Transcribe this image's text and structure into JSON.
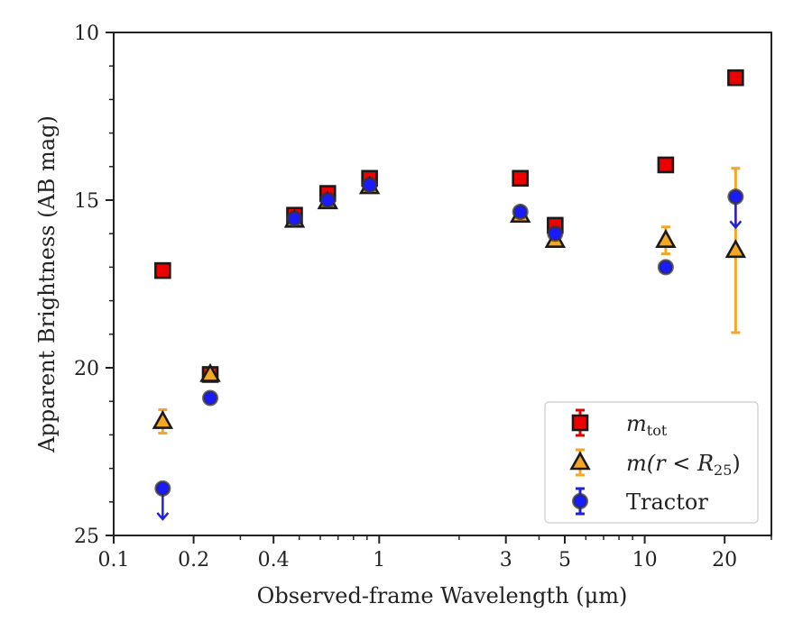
{
  "chart_data": {
    "type": "scatter",
    "xlabel": "Observed-frame Wavelength (μm)",
    "ylabel": "Apparent Brightness (AB mag)",
    "x_scale": "log",
    "y_inverted": true,
    "xlim": [
      0.1,
      30
    ],
    "ylim": [
      25,
      10
    ],
    "x_ticks": [
      {
        "value": 0.1,
        "label": "0.1"
      },
      {
        "value": 0.2,
        "label": "0.2"
      },
      {
        "value": 0.4,
        "label": "0.4"
      },
      {
        "value": 1,
        "label": "1"
      },
      {
        "value": 3,
        "label": "3"
      },
      {
        "value": 5,
        "label": "5"
      },
      {
        "value": 10,
        "label": "10"
      },
      {
        "value": 20,
        "label": "20"
      }
    ],
    "x_minor_ticks": [
      0.3,
      0.5,
      0.6,
      0.7,
      0.8,
      0.9,
      2,
      4,
      6,
      7,
      8,
      9,
      30
    ],
    "y_ticks": [
      {
        "value": 10,
        "label": "10"
      },
      {
        "value": 15,
        "label": "15"
      },
      {
        "value": 20,
        "label": "20"
      },
      {
        "value": 25,
        "label": "25"
      }
    ],
    "y_minor_ticks": [
      11,
      12,
      13,
      14,
      16,
      17,
      18,
      19,
      21,
      22,
      23,
      24
    ],
    "grid": false,
    "legend_position": "lower-right",
    "series": [
      {
        "name": "m_tot",
        "legend_main": "m",
        "legend_sub": "tot",
        "marker": "square",
        "color": "#ee0000",
        "errcolor": "#dd0000",
        "points": [
          {
            "x": 0.153,
            "y": 17.1,
            "err": 0.05
          },
          {
            "x": 0.231,
            "y": 20.2,
            "err": 0.05
          },
          {
            "x": 0.48,
            "y": 15.45,
            "err": 0.05
          },
          {
            "x": 0.64,
            "y": 14.8,
            "err": 0.05
          },
          {
            "x": 0.92,
            "y": 14.35,
            "err": 0.05
          },
          {
            "x": 3.4,
            "y": 14.35,
            "err": 0.05
          },
          {
            "x": 4.6,
            "y": 15.75,
            "err": 0.1
          },
          {
            "x": 12.0,
            "y": 13.95,
            "err": 0.1
          },
          {
            "x": 22.0,
            "y": 11.35,
            "err": 0.05
          }
        ]
      },
      {
        "name": "m(r < R_25)",
        "legend_main": "m(r < R",
        "legend_sub": "25",
        "legend_end": ")",
        "marker": "triangle",
        "color": "#f5a623",
        "errcolor": "#f5a623",
        "points": [
          {
            "x": 0.153,
            "y": 21.6,
            "err": 0.35
          },
          {
            "x": 0.231,
            "y": 20.2,
            "err": 0.1
          },
          {
            "x": 0.48,
            "y": 15.6,
            "err": 0.05
          },
          {
            "x": 0.64,
            "y": 15.05,
            "err": 0.05
          },
          {
            "x": 0.92,
            "y": 14.6,
            "err": 0.05
          },
          {
            "x": 3.4,
            "y": 15.45,
            "err": 0.05
          },
          {
            "x": 4.6,
            "y": 16.2,
            "err": 0.1
          },
          {
            "x": 12.0,
            "y": 16.2,
            "err": 0.4
          },
          {
            "x": 22.0,
            "y": 16.5,
            "err": 2.45
          }
        ]
      },
      {
        "name": "Tractor",
        "legend_main": "Tractor",
        "marker": "circle",
        "color": "#1a1aff",
        "errcolor": "#2222dd",
        "points": [
          {
            "x": 0.153,
            "y": 23.6,
            "upper_limit": true
          },
          {
            "x": 0.231,
            "y": 20.9,
            "err": 0.05
          },
          {
            "x": 0.48,
            "y": 15.55,
            "err": 0.05
          },
          {
            "x": 0.64,
            "y": 15.0,
            "err": 0.05
          },
          {
            "x": 0.92,
            "y": 14.55,
            "err": 0.05
          },
          {
            "x": 3.4,
            "y": 15.35,
            "err": 0.05
          },
          {
            "x": 4.6,
            "y": 16.0,
            "err": 0.1
          },
          {
            "x": 12.0,
            "y": 17.0,
            "err": 0.05
          },
          {
            "x": 22.0,
            "y": 14.9,
            "upper_limit": true
          }
        ]
      }
    ]
  }
}
